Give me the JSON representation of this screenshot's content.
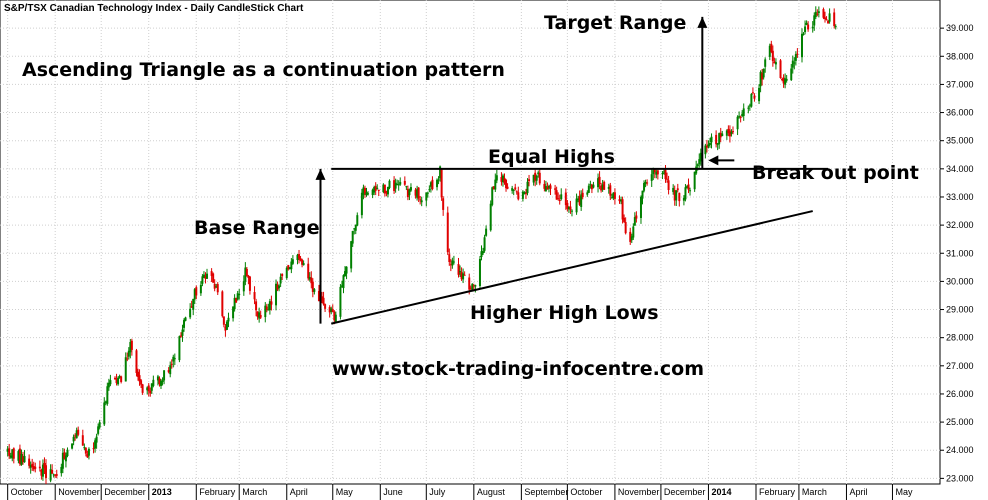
{
  "chart_data": {
    "type": "candlestick",
    "title": "S&P/TSX Canadian Technology Index - Daily CandleStick Chart",
    "colors": {
      "up": "#008000",
      "down": "#e00000",
      "grid": "#cfcfcf",
      "text": "#000000"
    },
    "y_axis": {
      "position": "right",
      "range": [
        22.8,
        40.0
      ],
      "ticks": [
        "23.000",
        "24.000",
        "25.000",
        "26.000",
        "27.000",
        "28.000",
        "29.000",
        "30.000",
        "31.000",
        "32.000",
        "33.000",
        "34.000",
        "35.000",
        "36.000",
        "37.000",
        "38.000",
        "39.000"
      ]
    },
    "x_axis": {
      "months": [
        "October",
        "November",
        "December",
        "2013",
        "February",
        "March",
        "April",
        "May",
        "June",
        "July",
        "August",
        "September",
        "October",
        "November",
        "December",
        "2014",
        "February",
        "March",
        "April",
        "May"
      ],
      "year_labels": [
        "2013",
        "2014"
      ]
    },
    "price_path": [
      [
        "2012-10-01",
        24.0
      ],
      [
        "2012-10-15",
        23.5
      ],
      [
        "2012-10-31",
        23.1
      ],
      [
        "2012-11-15",
        24.6
      ],
      [
        "2012-11-25",
        23.7
      ],
      [
        "2012-12-05",
        26.2
      ],
      [
        "2012-12-15",
        26.6
      ],
      [
        "2012-12-20",
        28.0
      ],
      [
        "2012-12-28",
        25.9
      ],
      [
        "2013-01-15",
        26.9
      ],
      [
        "2013-01-31",
        29.6
      ],
      [
        "2013-02-10",
        30.5
      ],
      [
        "2013-02-20",
        28.3
      ],
      [
        "2013-03-05",
        30.3
      ],
      [
        "2013-03-15",
        28.6
      ],
      [
        "2013-03-31",
        30.4
      ],
      [
        "2013-04-10",
        30.9
      ],
      [
        "2013-04-20",
        29.4
      ],
      [
        "2013-04-30",
        29.0
      ],
      [
        "2013-05-02",
        28.6
      ],
      [
        "2013-05-12",
        31.1
      ],
      [
        "2013-05-20",
        33.1
      ],
      [
        "2013-06-10",
        33.4
      ],
      [
        "2013-06-30",
        33.0
      ],
      [
        "2013-07-10",
        33.9
      ],
      [
        "2013-07-14",
        30.9
      ],
      [
        "2013-07-31",
        29.7
      ],
      [
        "2013-08-05",
        30.6
      ],
      [
        "2013-08-15",
        33.8
      ],
      [
        "2013-08-31",
        33.0
      ],
      [
        "2013-09-10",
        33.8
      ],
      [
        "2013-09-20",
        33.2
      ],
      [
        "2013-10-05",
        32.6
      ],
      [
        "2013-10-20",
        33.6
      ],
      [
        "2013-11-05",
        32.7
      ],
      [
        "2013-11-10",
        31.3
      ],
      [
        "2013-11-20",
        33.4
      ],
      [
        "2013-11-30",
        34.0
      ],
      [
        "2013-12-10",
        33.0
      ],
      [
        "2013-12-20",
        33.2
      ],
      [
        "2013-12-28",
        34.9
      ],
      [
        "2014-01-15",
        35.3
      ],
      [
        "2014-01-31",
        36.6
      ],
      [
        "2014-02-10",
        38.2
      ],
      [
        "2014-02-20",
        37.0
      ],
      [
        "2014-03-05",
        38.9
      ],
      [
        "2014-03-15",
        39.6
      ],
      [
        "2014-03-25",
        39.1
      ]
    ],
    "annotations": [
      {
        "text": "Ascending Triangle as a continuation pattern"
      },
      {
        "text": "Target Range"
      },
      {
        "text": "Base Range"
      },
      {
        "text": "Equal Highs"
      },
      {
        "text": "Break out point"
      },
      {
        "text": "Higher High Lows"
      },
      {
        "text": "www.stock-trading-infocentre.com"
      }
    ],
    "lines": [
      {
        "name": "resistance-line",
        "from": [
          "2013-04-30",
          34.0
        ],
        "to": [
          "2014-03-20",
          34.0
        ]
      },
      {
        "name": "support-line",
        "from": [
          "2013-04-30",
          28.5
        ],
        "to": [
          "2014-03-10",
          32.5
        ]
      },
      {
        "name": "base-range-arrow",
        "from": [
          "2013-04-23",
          28.5
        ],
        "to": [
          "2013-04-23",
          34.0
        ]
      },
      {
        "name": "target-range-arrow",
        "from": [
          "2013-12-28",
          34.0
        ],
        "to": [
          "2013-12-28",
          39.4
        ]
      }
    ]
  }
}
